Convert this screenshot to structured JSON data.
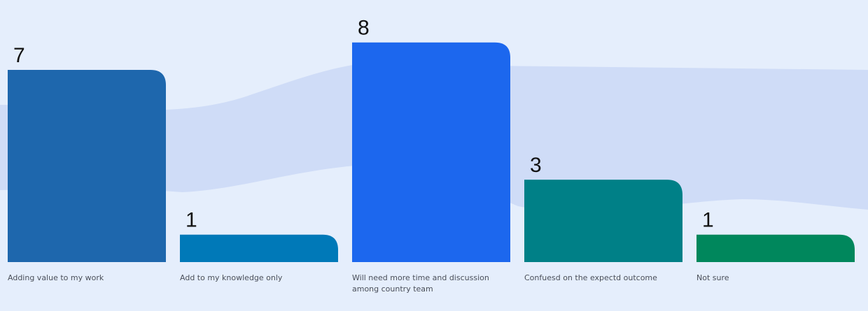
{
  "chart_data": {
    "type": "bar",
    "categories": [
      [
        "Adding value to my work"
      ],
      [
        "Add to my knowledge only"
      ],
      [
        "Will need more time and discussion",
        "among country team"
      ],
      [
        "Confuesd on the expectd outcome"
      ],
      [
        "Not sure"
      ]
    ],
    "values": [
      7,
      1,
      8,
      3,
      1
    ],
    "ylim": [
      0,
      8.4
    ],
    "grid": false,
    "legend": "none",
    "colors": [
      "#1e67ad",
      "#0079b8",
      "#1c67ee",
      "#008087",
      "#00875c"
    ],
    "background": "#e5eefc",
    "wave_color": "#cfdcf7"
  }
}
